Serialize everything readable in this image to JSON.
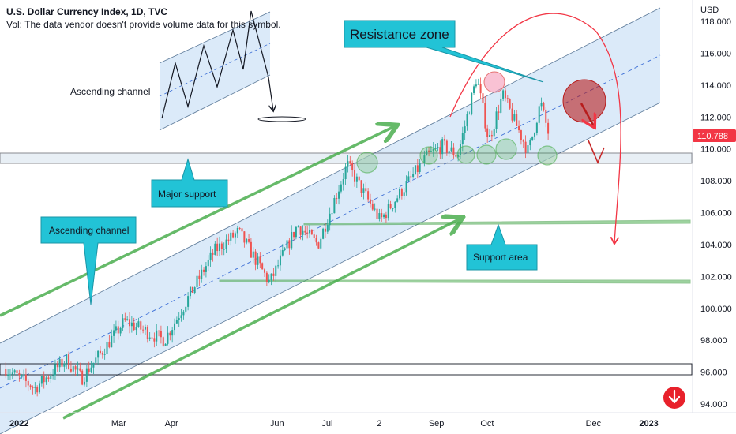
{
  "header": {
    "title": "U.S. Dollar Currency Index, 1D, TVC",
    "volume_note": "Vol: The data vendor doesn't provide volume data for this symbol."
  },
  "annotations": {
    "inset_label": "Ascending channel",
    "resistance": "Resistance zone",
    "major_support": "Major support",
    "ascending_channel": "Ascending channel",
    "support_area": "Support area"
  },
  "colors": {
    "up": "#26a69a",
    "down": "#ef5350",
    "channel_fill": "#cfe3f7",
    "callout": "#22c3d6",
    "trend_arrow": "#4caf50",
    "forecast": "#f23645",
    "price_badge": "#f23645"
  },
  "chart_data": {
    "type": "candlestick",
    "symbol": "DXY",
    "currency": "USD",
    "timeframe": "1D",
    "source": "TVC",
    "last_price": "110.788",
    "ylim": [
      93.5,
      119.0
    ],
    "y_ticks": [
      "94.000",
      "96.000",
      "98.000",
      "100.000",
      "102.000",
      "104.000",
      "106.000",
      "108.000",
      "110.000",
      "112.000",
      "114.000",
      "116.000",
      "118.000"
    ],
    "x_ticks": [
      "2022",
      "Mar",
      "Apr",
      "Jun",
      "Jul",
      "2",
      "Sep",
      "Oct",
      "Dec",
      "2023"
    ],
    "x_range": [
      "2022-01-01",
      "2023-01-10"
    ],
    "price_path": [
      {
        "date": "2021-12-28",
        "price": 96.2
      },
      {
        "date": "2022-01-14",
        "price": 95.0
      },
      {
        "date": "2022-02-01",
        "price": 96.8
      },
      {
        "date": "2022-02-10",
        "price": 95.6
      },
      {
        "date": "2022-03-07",
        "price": 99.2
      },
      {
        "date": "2022-03-30",
        "price": 98.0
      },
      {
        "date": "2022-04-28",
        "price": 103.6
      },
      {
        "date": "2022-05-12",
        "price": 104.8
      },
      {
        "date": "2022-05-30",
        "price": 101.6
      },
      {
        "date": "2022-06-15",
        "price": 105.2
      },
      {
        "date": "2022-06-27",
        "price": 104.0
      },
      {
        "date": "2022-07-14",
        "price": 109.0
      },
      {
        "date": "2022-08-02",
        "price": 105.5
      },
      {
        "date": "2022-08-29",
        "price": 109.5
      },
      {
        "date": "2022-09-07",
        "price": 110.2
      },
      {
        "date": "2022-09-16",
        "price": 109.6
      },
      {
        "date": "2022-09-27",
        "price": 114.5
      },
      {
        "date": "2022-10-04",
        "price": 110.5
      },
      {
        "date": "2022-10-12",
        "price": 113.4
      },
      {
        "date": "2022-10-27",
        "price": 109.8
      },
      {
        "date": "2022-11-03",
        "price": 112.9
      },
      {
        "date": "2022-11-08",
        "price": 110.788
      }
    ],
    "levels": [
      {
        "name": "major-support-top",
        "value": 109.8
      },
      {
        "name": "major-support-bottom",
        "value": 109.2
      },
      {
        "name": "support-area",
        "value": 105.6
      },
      {
        "name": "lower-support",
        "value": 101.7
      },
      {
        "name": "base-zone-top",
        "value": 96.7
      },
      {
        "name": "base-zone-bottom",
        "value": 96.0
      }
    ]
  }
}
